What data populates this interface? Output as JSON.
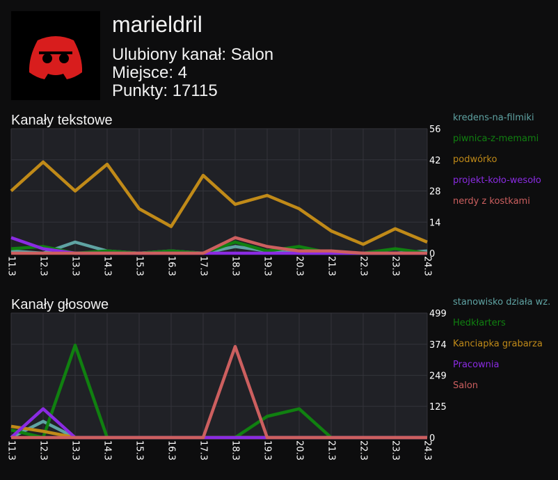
{
  "profile": {
    "username": "marieldril",
    "favorite_channel": "Ulubiony kanał: Salon",
    "rank": "Miejsce: 4",
    "points": "Punkty: 17115",
    "avatar_icon": "discord-logo-icon",
    "avatar_color": "#d81d1d"
  },
  "sections": {
    "text_title": "Kanały tekstowe",
    "voice_title": "Kanały głosowe"
  },
  "chart_data": [
    {
      "type": "line",
      "title": "Kanały tekstowe",
      "x": [
        "11.3",
        "12.3",
        "13.3",
        "14.3",
        "15.3",
        "16.3",
        "17.3",
        "18.3",
        "19.3",
        "20.3",
        "21.3",
        "22.3",
        "23.3",
        "24.3"
      ],
      "ylim": [
        0,
        56
      ],
      "yticks": [
        0,
        14,
        28,
        42,
        56
      ],
      "grid": true,
      "legend": "right",
      "series": [
        {
          "name": "kredens-na-filmiki",
          "color": "#5fa3a3",
          "values": [
            1,
            0,
            5,
            1,
            0,
            1,
            0,
            3,
            1,
            0,
            0,
            0,
            0,
            1
          ]
        },
        {
          "name": "piwnica-z-memami",
          "color": "#108010",
          "values": [
            2,
            3,
            0,
            1,
            0,
            1,
            0,
            5,
            1,
            3,
            0,
            0,
            2,
            0
          ]
        },
        {
          "name": "podwórko",
          "color": "#c08a18",
          "values": [
            28,
            41,
            28,
            40,
            20,
            12,
            35,
            22,
            26,
            20,
            10,
            4,
            11,
            5
          ]
        },
        {
          "name": "projekt-koło-wesoło",
          "color": "#8a2be2",
          "values": [
            7,
            2,
            0,
            0,
            0,
            0,
            0,
            0,
            0,
            0,
            0,
            0,
            0,
            0
          ]
        },
        {
          "name": "nerdy z kostkami",
          "color": "#cc5f5f",
          "values": [
            0,
            0,
            0,
            0,
            0,
            0,
            0,
            7,
            3,
            1,
            1,
            0,
            0,
            0
          ]
        }
      ]
    },
    {
      "type": "line",
      "title": "Kanały głosowe",
      "x": [
        "11.3",
        "12.3",
        "13.3",
        "14.3",
        "15.3",
        "16.3",
        "17.3",
        "18.3",
        "19.3",
        "20.3",
        "21.3",
        "22.3",
        "23.3",
        "24.3"
      ],
      "ylim": [
        0,
        499
      ],
      "yticks": [
        0,
        125,
        249,
        374,
        499
      ],
      "grid": true,
      "legend": "right",
      "series": [
        {
          "name": "stanowisko działa wz.",
          "color": "#5fa3a3",
          "values": [
            0,
            65,
            0,
            0,
            0,
            0,
            0,
            0,
            0,
            0,
            0,
            0,
            0,
            0
          ]
        },
        {
          "name": "Hedkłarters",
          "color": "#108010",
          "values": [
            30,
            0,
            370,
            0,
            0,
            0,
            0,
            0,
            85,
            115,
            0,
            0,
            0,
            0
          ]
        },
        {
          "name": "Kanciapka grabarza",
          "color": "#c08a18",
          "values": [
            45,
            25,
            0,
            0,
            0,
            0,
            0,
            0,
            0,
            0,
            0,
            0,
            0,
            0
          ]
        },
        {
          "name": "Pracownia",
          "color": "#8a2be2",
          "values": [
            0,
            115,
            0,
            0,
            0,
            0,
            0,
            0,
            0,
            0,
            0,
            0,
            0,
            0
          ]
        },
        {
          "name": "Salon",
          "color": "#cc5f5f",
          "values": [
            0,
            0,
            0,
            0,
            0,
            0,
            0,
            365,
            0,
            0,
            0,
            0,
            0,
            0
          ]
        }
      ]
    }
  ]
}
